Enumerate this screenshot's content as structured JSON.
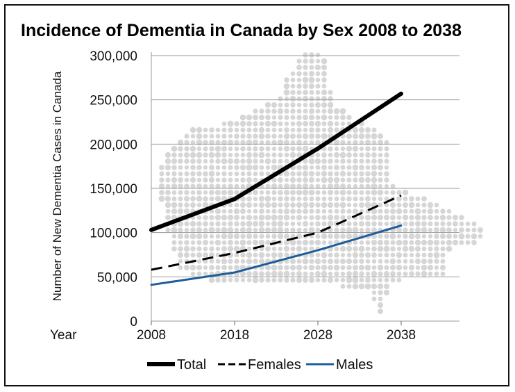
{
  "chart_data": {
    "type": "line",
    "title": "Incidence of Dementia in Canada by Sex 2008 to 2038",
    "xlabel": "Year",
    "ylabel": "Number of New Dementia Cases in Canada",
    "x": [
      2008,
      2018,
      2028,
      2038
    ],
    "x_ticks": [
      "2008",
      "2018",
      "2028",
      "2038"
    ],
    "y_ticks": [
      "0",
      "50,000",
      "100,000",
      "150,000",
      "200,000",
      "250,000",
      "300,000"
    ],
    "ylim": [
      0,
      300000
    ],
    "grid": true,
    "legend_position": "bottom",
    "series": [
      {
        "name": "Total",
        "values": [
          103000,
          138000,
          195000,
          257000
        ],
        "color": "#000000",
        "style": "solid"
      },
      {
        "name": "Females",
        "values": [
          58000,
          77000,
          100000,
          142000
        ],
        "color": "#000000",
        "style": "dashed"
      },
      {
        "name": "Males",
        "values": [
          41000,
          55000,
          80000,
          108000
        ],
        "color": "#1f5c99",
        "style": "solid"
      }
    ],
    "background": "dotted map of Canada"
  }
}
